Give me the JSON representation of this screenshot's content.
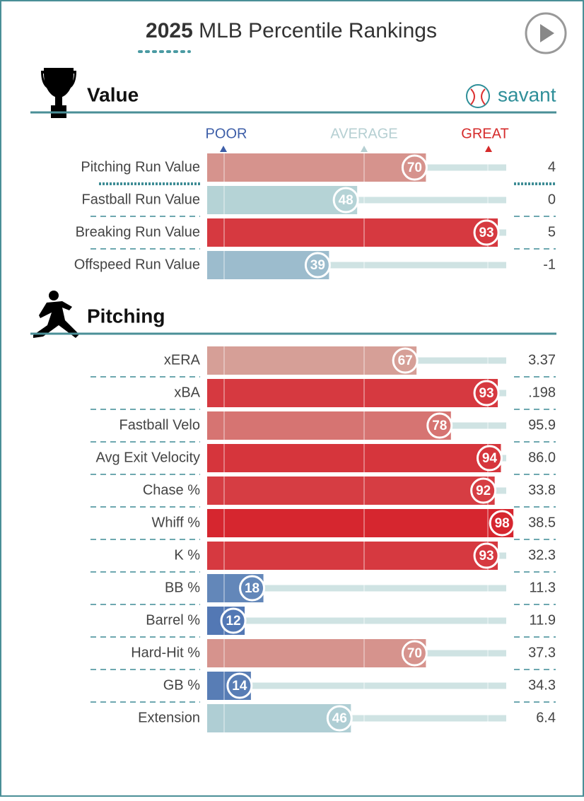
{
  "header": {
    "year": "2025",
    "title": "MLB Percentile Rankings",
    "logo": "savant"
  },
  "legend": {
    "poor": "POOR",
    "average": "AVERAGE",
    "great": "GREAT"
  },
  "sections": [
    {
      "title": "Value",
      "rows": [
        {
          "label": "Pitching Run Value",
          "percentile": 70,
          "stat": "4"
        },
        {
          "label": "Fastball Run Value",
          "percentile": 48,
          "stat": "0"
        },
        {
          "label": "Breaking Run Value",
          "percentile": 93,
          "stat": "5"
        },
        {
          "label": "Offspeed Run Value",
          "percentile": 39,
          "stat": "-1"
        }
      ]
    },
    {
      "title": "Pitching",
      "rows": [
        {
          "label": "xERA",
          "percentile": 67,
          "stat": "3.37"
        },
        {
          "label": "xBA",
          "percentile": 93,
          "stat": ".198"
        },
        {
          "label": "Fastball Velo",
          "percentile": 78,
          "stat": "95.9"
        },
        {
          "label": "Avg Exit Velocity",
          "percentile": 94,
          "stat": "86.0"
        },
        {
          "label": "Chase %",
          "percentile": 92,
          "stat": "33.8"
        },
        {
          "label": "Whiff %",
          "percentile": 98,
          "stat": "38.5"
        },
        {
          "label": "K %",
          "percentile": 93,
          "stat": "32.3"
        },
        {
          "label": "BB %",
          "percentile": 18,
          "stat": "11.3"
        },
        {
          "label": "Barrel %",
          "percentile": 12,
          "stat": "11.9"
        },
        {
          "label": "Hard-Hit %",
          "percentile": 70,
          "stat": "37.3"
        },
        {
          "label": "GB %",
          "percentile": 14,
          "stat": "34.3"
        },
        {
          "label": "Extension",
          "percentile": 46,
          "stat": "6.4"
        }
      ]
    }
  ]
}
